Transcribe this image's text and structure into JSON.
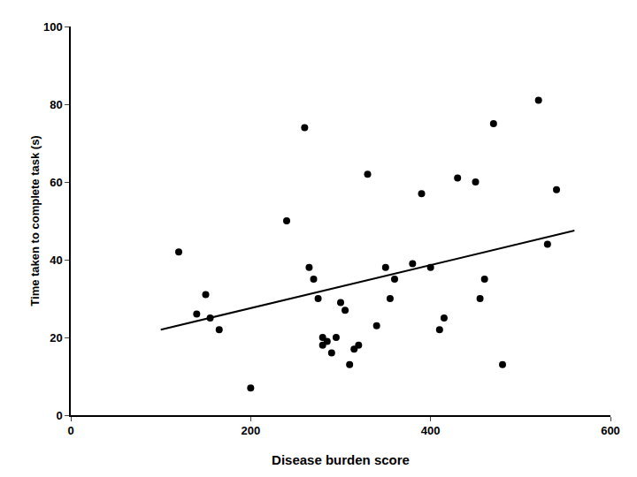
{
  "chart_data": {
    "type": "scatter",
    "x_label": "Disease burden score",
    "y_label": "Time taken to complete task (s)",
    "series": [
      {
        "type": "scatter",
        "marker": "circle",
        "color": "#000000",
        "x": [
          120,
          140,
          150,
          155,
          165,
          200,
          240,
          260,
          265,
          270,
          275,
          280,
          280,
          285,
          290,
          295,
          300,
          305,
          310,
          315,
          320,
          330,
          340,
          350,
          355,
          360,
          380,
          390,
          400,
          410,
          415,
          430,
          450,
          455,
          460,
          470,
          480,
          520,
          530,
          540
        ],
        "values": [
          42,
          26,
          31,
          25,
          22,
          7,
          50,
          74,
          38,
          35,
          30,
          20,
          18,
          19,
          16,
          20,
          29,
          27,
          13,
          17,
          18,
          62,
          23,
          38,
          30,
          35,
          39,
          57,
          38,
          22,
          25,
          61,
          60,
          30,
          35,
          75,
          13,
          81,
          44,
          58
        ]
      },
      {
        "type": "line",
        "line_style": "solid",
        "color": "#000000",
        "x": [
          100,
          560
        ],
        "values": [
          22.0,
          47.5
        ]
      }
    ],
    "xlim": [
      0,
      600
    ],
    "ylim": [
      0,
      100
    ],
    "xticks": [
      0,
      200,
      400,
      600
    ],
    "yticks": [
      0,
      20,
      40,
      60,
      80,
      100
    ],
    "grid": false
  }
}
